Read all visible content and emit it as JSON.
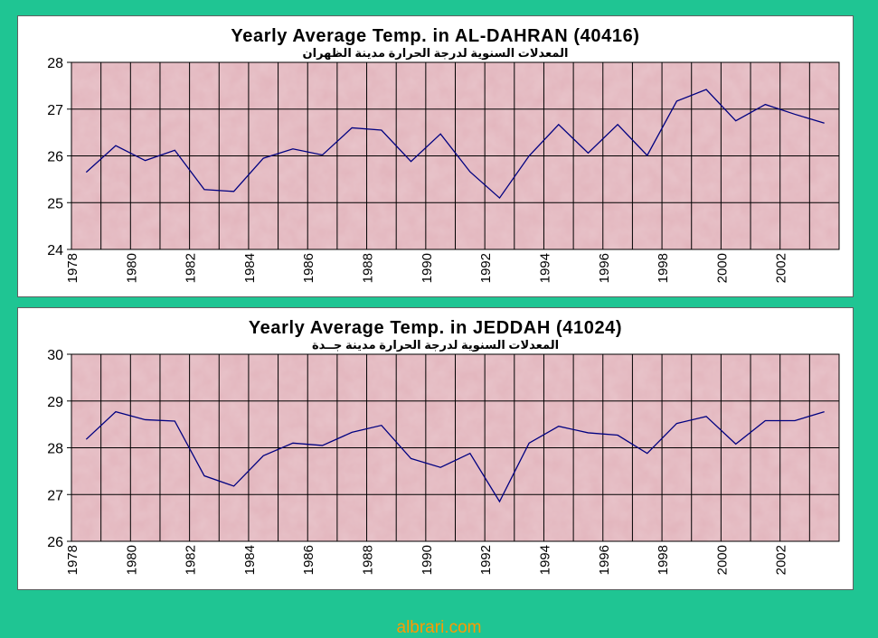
{
  "footer": {
    "text": "albrari.com"
  },
  "colors": {
    "background": "#1fc593",
    "plot_area": "#e2b4bc",
    "line": "#000080",
    "footer": "#ff9900"
  },
  "chart_data": [
    {
      "type": "line",
      "title": "Yearly Average Temp. in AL-DAHRAN (40416)",
      "subtitle": "المعدلات السنوية لدرجة الحرارة مدينة الظهران",
      "ylim": [
        24,
        28
      ],
      "yticks": [
        "24",
        "25",
        "26",
        "27",
        "28"
      ],
      "xlim": [
        1978,
        2004
      ],
      "xtick_labels": [
        "1978",
        "1980",
        "1982",
        "1984",
        "1986",
        "1988",
        "1990",
        "1992",
        "1994",
        "1996",
        "1998",
        "2000",
        "2002"
      ],
      "grid": true,
      "x": [
        1978,
        1979,
        1980,
        1981,
        1982,
        1983,
        1984,
        1985,
        1986,
        1987,
        1988,
        1989,
        1990,
        1991,
        1992,
        1993,
        1994,
        1995,
        1996,
        1997,
        1998,
        1999,
        2000,
        2001,
        2002,
        2003
      ],
      "values": [
        25.65,
        26.22,
        25.9,
        26.12,
        25.28,
        25.24,
        25.95,
        26.15,
        26.02,
        26.6,
        26.55,
        25.88,
        26.47,
        25.66,
        25.1,
        26.0,
        26.67,
        26.06,
        26.67,
        26.01,
        27.17,
        27.42,
        26.75,
        27.1,
        26.89,
        26.7
      ]
    },
    {
      "type": "line",
      "title": "Yearly Average Temp. in JEDDAH (41024)",
      "subtitle": "المعدلات السنوية لدرجة الحرارة مدينة جــدة",
      "ylim": [
        26,
        30
      ],
      "yticks": [
        "26",
        "27",
        "28",
        "29",
        "30"
      ],
      "xlim": [
        1978,
        2004
      ],
      "xtick_labels": [
        "1978",
        "1980",
        "1982",
        "1984",
        "1986",
        "1988",
        "1990",
        "1992",
        "1994",
        "1996",
        "1998",
        "2000",
        "2002"
      ],
      "grid": true,
      "x": [
        1978,
        1979,
        1980,
        1981,
        1982,
        1983,
        1984,
        1985,
        1986,
        1987,
        1988,
        1989,
        1990,
        1991,
        1992,
        1993,
        1994,
        1995,
        1996,
        1997,
        1998,
        1999,
        2000,
        2001,
        2002,
        2003
      ],
      "values": [
        28.18,
        28.77,
        28.6,
        28.57,
        27.4,
        27.18,
        27.83,
        28.1,
        28.05,
        28.33,
        28.48,
        27.77,
        27.58,
        27.88,
        26.85,
        28.1,
        28.46,
        28.32,
        28.27,
        27.88,
        28.52,
        28.67,
        28.08,
        28.58,
        28.58,
        28.77
      ]
    }
  ]
}
